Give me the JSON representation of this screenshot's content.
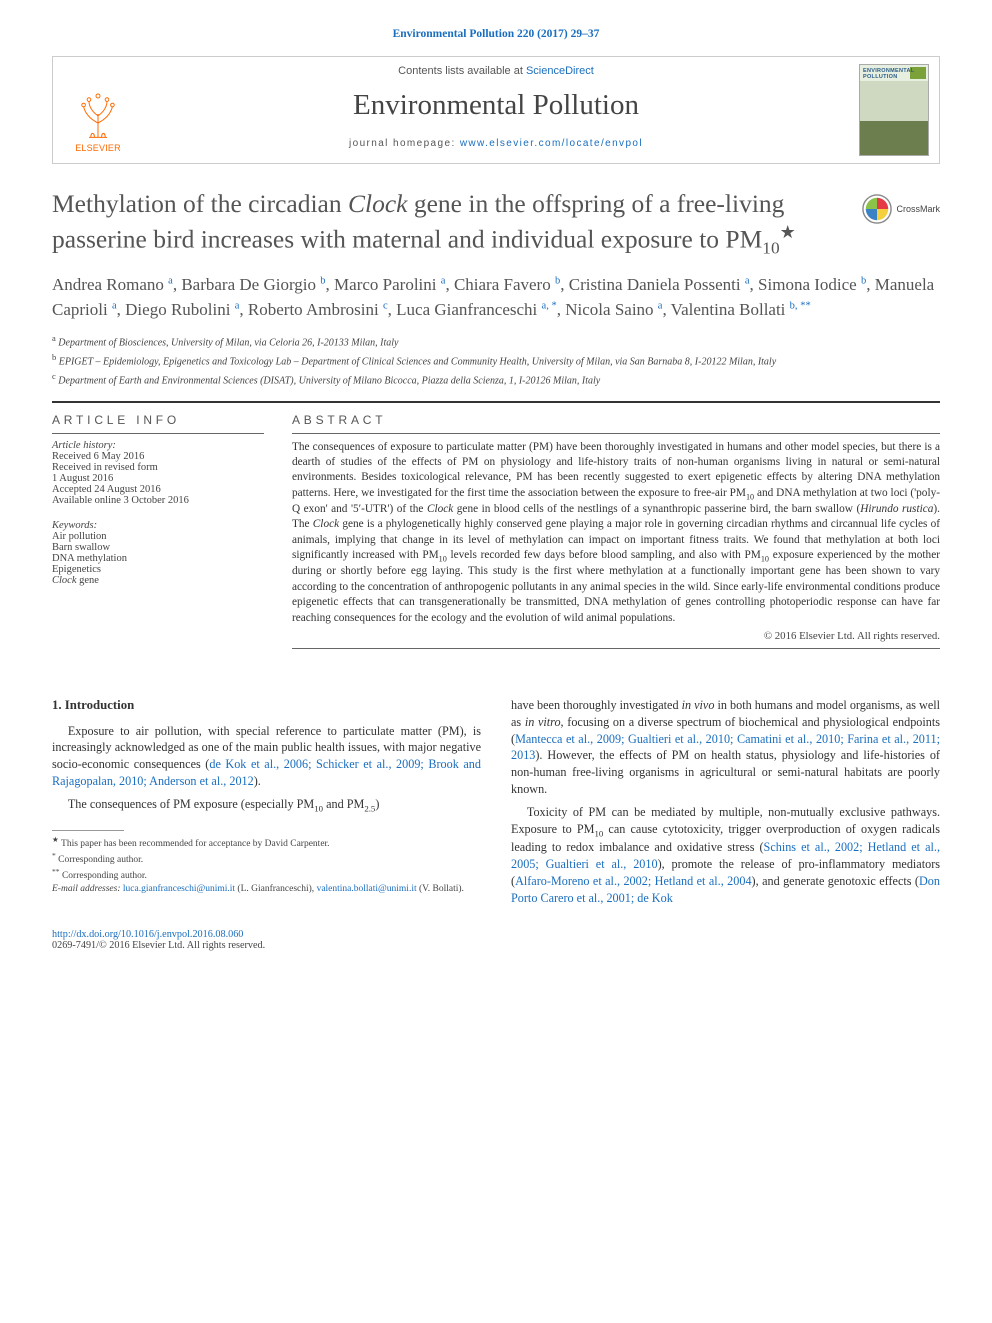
{
  "top_reference": {
    "prefix": "Environmental Pollution 220 (2017) 29–37",
    "color": "#1a6ebf"
  },
  "header": {
    "contents_line_prefix": "Contents lists available at ",
    "contents_line_link": "ScienceDirect",
    "journal_name": "Environmental Pollution",
    "homepage_prefix": "journal homepage: ",
    "homepage_link": "www.elsevier.com/locate/envpol",
    "publisher_logo_text": "ELSEVIER",
    "cover_title": "ENVIRONMENTAL POLLUTION"
  },
  "title": {
    "line1": "Methylation of the circadian ",
    "italic1": "Clock",
    "line2": " gene in the offspring of a free-living passerine bird increases with maternal and individual exposure to PM",
    "sub": "10",
    "star": "★"
  },
  "crossmark_label": "CrossMark",
  "authors": [
    {
      "name": "Andrea Romano",
      "aff": "a"
    },
    {
      "name": "Barbara De Giorgio",
      "aff": "b"
    },
    {
      "name": "Marco Parolini",
      "aff": "a"
    },
    {
      "name": "Chiara Favero",
      "aff": "b"
    },
    {
      "name": "Cristina Daniela Possenti",
      "aff": "a"
    },
    {
      "name": "Simona Iodice",
      "aff": "b"
    },
    {
      "name": "Manuela Caprioli",
      "aff": "a"
    },
    {
      "name": "Diego Rubolini",
      "aff": "a"
    },
    {
      "name": "Roberto Ambrosini",
      "aff": "c"
    },
    {
      "name": "Luca Gianfranceschi",
      "aff": "a, *"
    },
    {
      "name": "Nicola Saino",
      "aff": "a"
    },
    {
      "name": "Valentina Bollati",
      "aff": "b, **"
    }
  ],
  "affiliations": {
    "a": "Department of Biosciences, University of Milan, via Celoria 26, I-20133 Milan, Italy",
    "b": "EPIGET – Epidemiology, Epigenetics and Toxicology Lab – Department of Clinical Sciences and Community Health, University of Milan, via San Barnaba 8, I-20122 Milan, Italy",
    "c": "Department of Earth and Environmental Sciences (DISAT), University of Milano Bicocca, Piazza della Scienza, 1, I-20126 Milan, Italy"
  },
  "article_info": {
    "heading": "ARTICLE INFO",
    "history_label": "Article history:",
    "history": [
      "Received 6 May 2016",
      "Received in revised form",
      "1 August 2016",
      "Accepted 24 August 2016",
      "Available online 3 October 2016"
    ],
    "keywords_label": "Keywords:",
    "keywords": [
      "Air pollution",
      "Barn swallow",
      "DNA methylation",
      "Epigenetics"
    ],
    "keywords_italic": "Clock",
    "keywords_italic_suffix": " gene"
  },
  "abstract": {
    "heading": "ABSTRACT",
    "text_parts": [
      "The consequences of exposure to particulate matter (PM) have been thoroughly investigated in humans and other model species, but there is a dearth of studies of the effects of PM on physiology and life-history traits of non-human organisms living in natural or semi-natural environments. Besides toxicological relevance, PM has been recently suggested to exert epigenetic effects by altering DNA methylation patterns. Here, we investigated for the first time the association between the exposure to free-air PM",
      "10",
      " and DNA methylation at two loci ('poly-Q exon' and '5′-UTR') of the ",
      "Clock",
      " gene in blood cells of the nestlings of a synanthropic passerine bird, the barn swallow (",
      "Hirundo rustica",
      "). The ",
      "Clock",
      " gene is a phylogenetically highly conserved gene playing a major role in governing circadian rhythms and circannual life cycles of animals, implying that change in its level of methylation can impact on important fitness traits. We found that methylation at both loci significantly increased with PM",
      "10",
      " levels recorded few days before blood sampling, and also with PM",
      "10",
      " exposure experienced by the mother during or shortly before egg laying. This study is the first where methylation at a functionally important gene has been shown to vary according to the concentration of anthropogenic pollutants in any animal species in the wild. Since early-life environmental conditions produce epigenetic effects that can transgenerationally be transmitted, DNA methylation of genes controlling photoperiodic response can have far reaching consequences for the ecology and the evolution of wild animal populations."
    ],
    "copyright": "© 2016 Elsevier Ltd. All rights reserved."
  },
  "body": {
    "section_heading": "1. Introduction",
    "left": [
      {
        "type": "p",
        "indent": true,
        "runs": [
          {
            "t": "Exposure to air pollution, with special reference to particulate matter (PM), is increasingly acknowledged as one of the main public health issues, with major negative socio-economic consequences ("
          },
          {
            "t": "de Kok et al., 2006; Schicker et al., 2009; Brook and Rajagopalan, 2010; Anderson et al., 2012",
            "link": true
          },
          {
            "t": ")."
          }
        ]
      },
      {
        "type": "p",
        "indent": true,
        "runs": [
          {
            "t": "The consequences of PM exposure (especially PM"
          },
          {
            "t": "10",
            "sub": true
          },
          {
            "t": " and PM"
          },
          {
            "t": "2.5",
            "sub": true
          },
          {
            "t": ")"
          }
        ]
      }
    ],
    "right": [
      {
        "type": "p",
        "indent": false,
        "runs": [
          {
            "t": "have been thoroughly investigated "
          },
          {
            "t": "in vivo",
            "i": true
          },
          {
            "t": " in both humans and model organisms, as well as "
          },
          {
            "t": "in vitro",
            "i": true
          },
          {
            "t": ", focusing on a diverse spectrum of biochemical and physiological endpoints ("
          },
          {
            "t": "Mantecca et al., 2009; Gualtieri et al., 2010; Camatini et al., 2010; Farina et al., 2011; 2013",
            "link": true
          },
          {
            "t": "). However, the effects of PM on health status, physiology and life-histories of non-human free-living organisms in agricultural or semi-natural habitats are poorly known."
          }
        ]
      },
      {
        "type": "p",
        "indent": true,
        "runs": [
          {
            "t": "Toxicity of PM can be mediated by multiple, non-mutually exclusive pathways. Exposure to PM"
          },
          {
            "t": "10",
            "sub": true
          },
          {
            "t": " can cause cytotoxicity, trigger overproduction of oxygen radicals leading to redox imbalance and oxidative stress ("
          },
          {
            "t": "Schins et al., 2002; Hetland et al., 2005; Gualtieri et al., 2010",
            "link": true
          },
          {
            "t": "), promote the release of pro-inflammatory mediators ("
          },
          {
            "t": "Alfaro-Moreno et al., 2002; Hetland et al., 2004",
            "link": true
          },
          {
            "t": "), and generate genotoxic effects ("
          },
          {
            "t": "Don Porto Carero et al., 2001; de Kok",
            "link": true
          }
        ]
      }
    ]
  },
  "footnotes": {
    "star": "This paper has been recommended for acceptance by David Carpenter.",
    "corr1": "Corresponding author.",
    "corr2": "Corresponding author.",
    "email_label": "E-mail addresses:",
    "emails": [
      {
        "addr": "luca.gianfranceschi@unimi.it",
        "who": "(L. Gianfranceschi)"
      },
      {
        "addr": "valentina.bollati@unimi.it",
        "who": "(V. Bollati)."
      }
    ]
  },
  "bottom": {
    "doi": "http://dx.doi.org/10.1016/j.envpol.2016.08.060",
    "issn_line": "0269-7491/© 2016 Elsevier Ltd. All rights reserved."
  },
  "colors": {
    "link": "#1a6ebf",
    "elsevier_orange": "#ff6a00"
  }
}
